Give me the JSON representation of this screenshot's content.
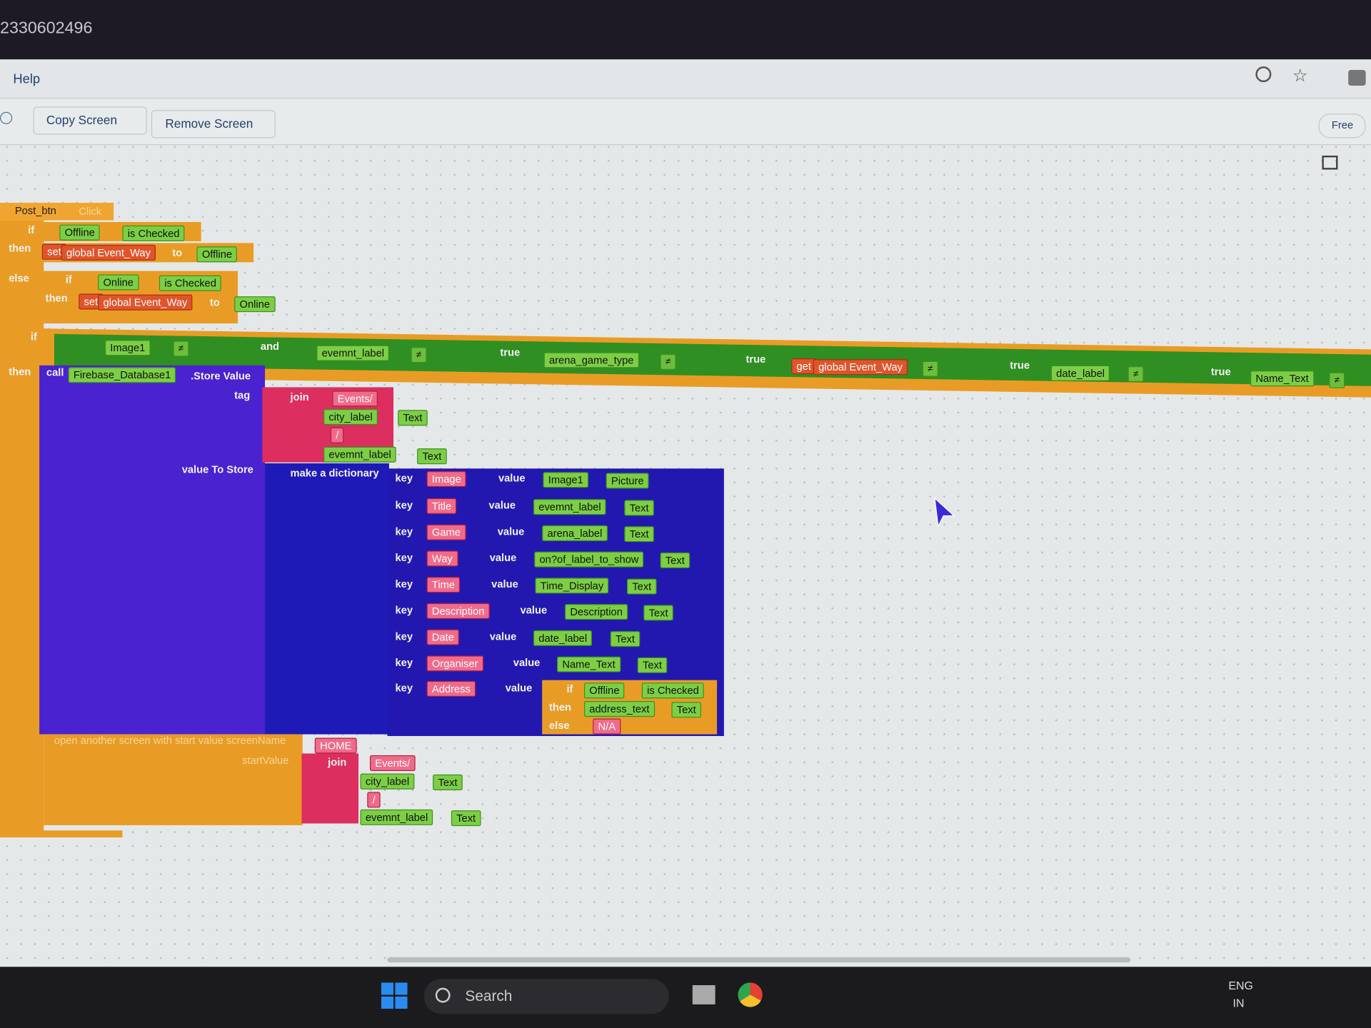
{
  "window": {
    "id": "2330602496"
  },
  "menu": {
    "help": "Help"
  },
  "toolbar": {
    "copy_screen": "Copy Screen",
    "remove_screen": "Remove Screen",
    "plan": "Free"
  },
  "blocks": [
    "Post_btn",
    "Click",
    "if",
    "Offline",
    "is Checked",
    "then",
    "set",
    "global Event_Way",
    "to",
    "Offline",
    "else",
    "if",
    "Online",
    "is Checked",
    "then",
    "set",
    "global Event_Way",
    "to",
    "Online",
    "if",
    "Image1",
    "≠",
    "and",
    "evemnt_label",
    "≠",
    "true",
    "arena_game_type",
    "≠",
    "true",
    "get",
    "global Event_Way",
    "≠",
    "true",
    "date_label",
    "≠",
    "true",
    "Name_Text",
    "≠",
    "then",
    "call",
    "Firebase_Database1",
    ".Store Value",
    "tag",
    "join",
    "Events/",
    "city_label",
    "Text",
    "/",
    "evemnt_label",
    "Text",
    "value To Store",
    "make a dictionary",
    "if",
    "Offline",
    "is Checked",
    "then",
    "address_text",
    "Text",
    "else",
    "N/A",
    "open another screen with start value  screenName",
    "HOME",
    "startValue",
    "join",
    "Events/",
    "city_label",
    "Text",
    "/",
    "evemnt_label",
    "Text"
  ],
  "dictionary": [
    {
      "k": "key",
      "key": "Image",
      "v": "value",
      "component": "Image1",
      "property": "Picture"
    },
    {
      "k": "key",
      "key": "Title",
      "v": "value",
      "component": "evemnt_label",
      "property": "Text"
    },
    {
      "k": "key",
      "key": "Game",
      "v": "value",
      "component": "arena_label",
      "property": "Text"
    },
    {
      "k": "key",
      "key": "Way",
      "v": "value",
      "component": "on?of_label_to_show",
      "property": "Text"
    },
    {
      "k": "key",
      "key": "Time",
      "v": "value",
      "component": "Time_Display",
      "property": "Text"
    },
    {
      "k": "key",
      "key": "Description",
      "v": "value",
      "component": "Description",
      "property": "Text"
    },
    {
      "k": "key",
      "key": "Date",
      "v": "value",
      "component": "date_label",
      "property": "Text"
    },
    {
      "k": "key",
      "key": "Organiser",
      "v": "value",
      "component": "Name_Text",
      "property": "Text"
    },
    {
      "k": "key",
      "key": "Address",
      "v": "value"
    }
  ],
  "taskbar": {
    "search": "Search",
    "language": "ENG",
    "region": "IN"
  }
}
